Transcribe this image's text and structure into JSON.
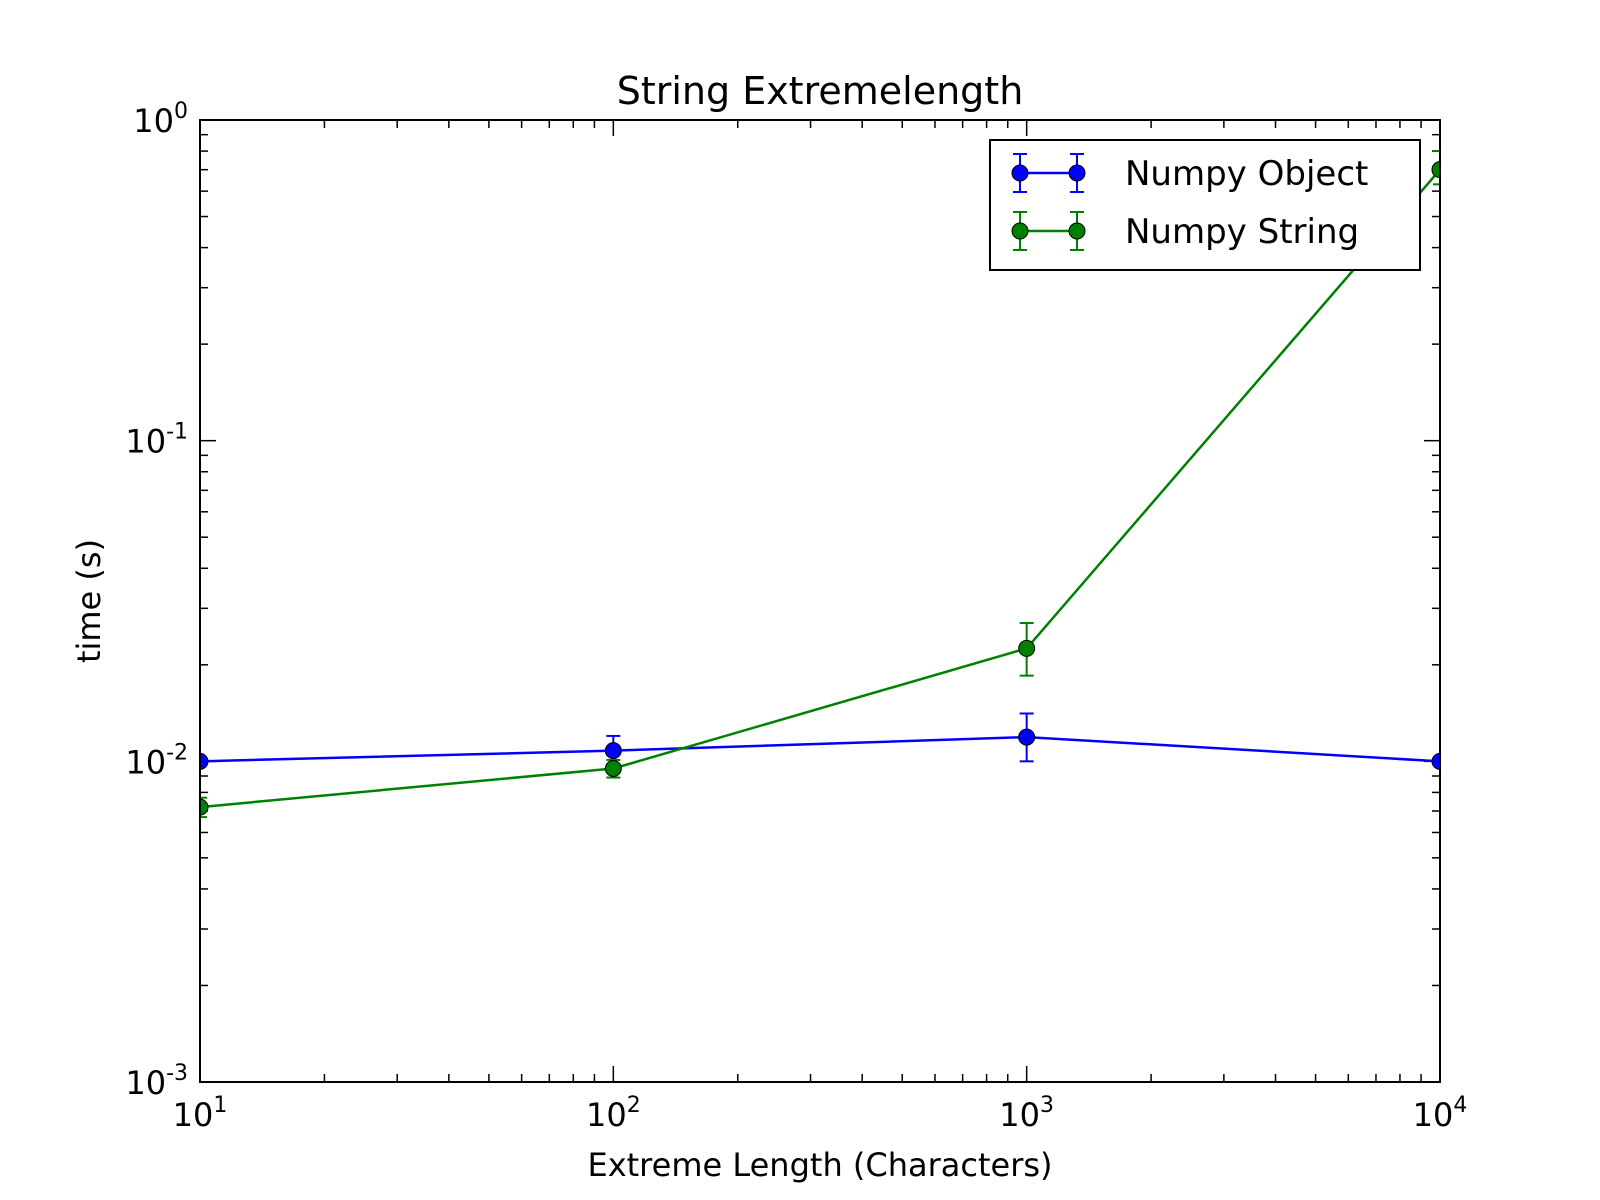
{
  "chart_data": {
    "type": "line",
    "title": "String Extremelength",
    "xlabel": "Extreme Length (Characters)",
    "ylabel": "time (s)",
    "x_scale": "log",
    "y_scale": "log",
    "xlim": [
      10,
      10000
    ],
    "ylim": [
      0.001,
      1
    ],
    "x_ticks": [
      {
        "value": 10,
        "base": "10",
        "exp": "1"
      },
      {
        "value": 100,
        "base": "10",
        "exp": "2"
      },
      {
        "value": 1000,
        "base": "10",
        "exp": "3"
      },
      {
        "value": 10000,
        "base": "10",
        "exp": "4"
      }
    ],
    "y_ticks": [
      {
        "value": 0.001,
        "base": "10",
        "exp": "-3"
      },
      {
        "value": 0.01,
        "base": "10",
        "exp": "-2"
      },
      {
        "value": 0.1,
        "base": "10",
        "exp": "-1"
      },
      {
        "value": 1,
        "base": "10",
        "exp": "0"
      }
    ],
    "grid": false,
    "legend_position": "top-right",
    "series": [
      {
        "name": "Numpy Object",
        "color": "#0000ff",
        "x": [
          10,
          100,
          1000,
          10000
        ],
        "y": [
          0.01,
          0.0108,
          0.0119,
          0.01
        ],
        "err_low": [
          0.0098,
          0.0097,
          0.01,
          0.0099
        ],
        "err_high": [
          0.0102,
          0.012,
          0.0141,
          0.0101
        ]
      },
      {
        "name": "Numpy String",
        "color": "#008000",
        "x": [
          10,
          100,
          1000,
          10000
        ],
        "y": [
          0.0072,
          0.0095,
          0.0225,
          0.7
        ],
        "err_low": [
          0.0067,
          0.0089,
          0.0185,
          0.63
        ],
        "err_high": [
          0.0077,
          0.0101,
          0.027,
          0.8
        ]
      }
    ]
  }
}
